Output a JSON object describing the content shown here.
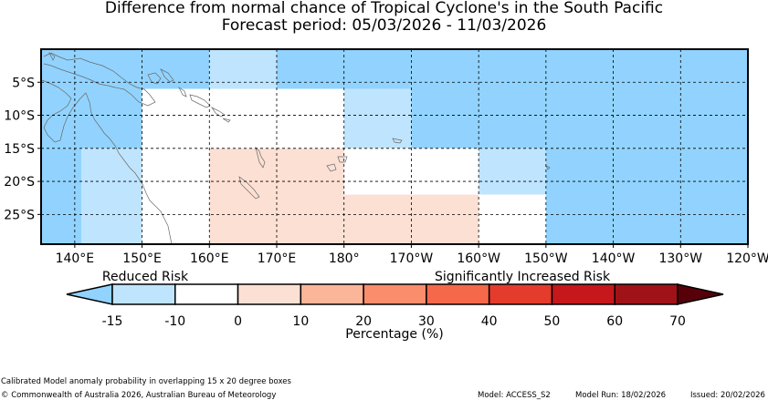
{
  "title": {
    "line1": "Difference from normal chance of Tropical Cyclone's in the South Pacific",
    "line2": "Forecast period: 05/03/2026 - 11/03/2026"
  },
  "chart_data": {
    "type": "heatmap",
    "x_ticks": [
      {
        "lon": 140,
        "label": "140°E"
      },
      {
        "lon": 150,
        "label": "150°E"
      },
      {
        "lon": 160,
        "label": "160°E"
      },
      {
        "lon": 170,
        "label": "170°E"
      },
      {
        "lon": 180,
        "label": "180°"
      },
      {
        "lon": 190,
        "label": "170°W"
      },
      {
        "lon": 200,
        "label": "160°W"
      },
      {
        "lon": 210,
        "label": "150°W"
      },
      {
        "lon": 220,
        "label": "140°W"
      },
      {
        "lon": 230,
        "label": "130°W"
      },
      {
        "lon": 240,
        "label": "120°W"
      }
    ],
    "y_ticks": [
      {
        "lat": -5,
        "label": "5°S"
      },
      {
        "lat": -10,
        "label": "10°S"
      },
      {
        "lat": -15,
        "label": "15°S"
      },
      {
        "lat": -20,
        "label": "20°S"
      },
      {
        "lat": -25,
        "label": "25°S"
      }
    ],
    "lon_range": [
      135,
      240
    ],
    "lat_range": [
      -29.5,
      0
    ],
    "cells": [
      {
        "lon": [
          135,
          160
        ],
        "lat": [
          -6,
          0
        ],
        "class": 0
      },
      {
        "lon": [
          160,
          170
        ],
        "lat": [
          -6,
          0
        ],
        "class": 1
      },
      {
        "lon": [
          170,
          240
        ],
        "lat": [
          -6,
          0
        ],
        "class": 0
      },
      {
        "lon": [
          135,
          150
        ],
        "lat": [
          -15,
          -6
        ],
        "class": 0
      },
      {
        "lon": [
          150,
          160
        ],
        "lat": [
          -15,
          -6
        ],
        "class": 2
      },
      {
        "lon": [
          160,
          180
        ],
        "lat": [
          -15,
          -6
        ],
        "class": 2
      },
      {
        "lon": [
          180,
          190
        ],
        "lat": [
          -15,
          -6
        ],
        "class": 1
      },
      {
        "lon": [
          190,
          240
        ],
        "lat": [
          -15,
          -6
        ],
        "class": 0
      },
      {
        "lon": [
          135,
          141
        ],
        "lat": [
          -29.5,
          -15
        ],
        "class": 0
      },
      {
        "lon": [
          141,
          150
        ],
        "lat": [
          -29.5,
          -15
        ],
        "class": 1
      },
      {
        "lon": [
          150,
          160
        ],
        "lat": [
          -29.5,
          -15
        ],
        "class": 2
      },
      {
        "lon": [
          160,
          180
        ],
        "lat": [
          -29.5,
          -15
        ],
        "class": 3
      },
      {
        "lon": [
          180,
          200
        ],
        "lat": [
          -22,
          -15
        ],
        "class": 2
      },
      {
        "lon": [
          180,
          200
        ],
        "lat": [
          -29.5,
          -22
        ],
        "class": 3
      },
      {
        "lon": [
          200,
          210
        ],
        "lat": [
          -22,
          -15
        ],
        "class": 1
      },
      {
        "lon": [
          200,
          210
        ],
        "lat": [
          -29.5,
          -22
        ],
        "class": 2
      },
      {
        "lon": [
          210,
          240
        ],
        "lat": [
          -29.5,
          -15
        ],
        "class": 0
      }
    ],
    "colorbar": {
      "labels": [
        "-15",
        "-10",
        "0",
        "10",
        "20",
        "30",
        "40",
        "50",
        "60",
        "70"
      ],
      "colors": [
        "#bfe4fe",
        "#ffffff",
        "#fde0d4",
        "#fbb598",
        "#f98d6c",
        "#f5694a",
        "#e53b2d",
        "#c6171c",
        "#a11218"
      ],
      "under_color": "#91d3fe",
      "over_color": "#580009",
      "left_caption": "Reduced Risk",
      "right_caption": "Significantly Increased Risk",
      "xlabel": "Percentage (%)"
    },
    "class_colors": [
      "#91d3fe",
      "#bfe4fe",
      "#ffffff",
      "#fde0d4"
    ]
  },
  "footer": {
    "method": "Calibrated Model anomaly probability in overlapping 15 x 20 degree boxes",
    "copyright": "© Commonwealth of Australia 2026, Australian Bureau of Meteorology",
    "model": "Model: ACCESS_S2",
    "model_run": "Model Run: 18/02/2026",
    "issued": "Issued: 20/02/2026"
  },
  "colors": {
    "coast": "#6a6a6a",
    "grid": "#000000"
  }
}
